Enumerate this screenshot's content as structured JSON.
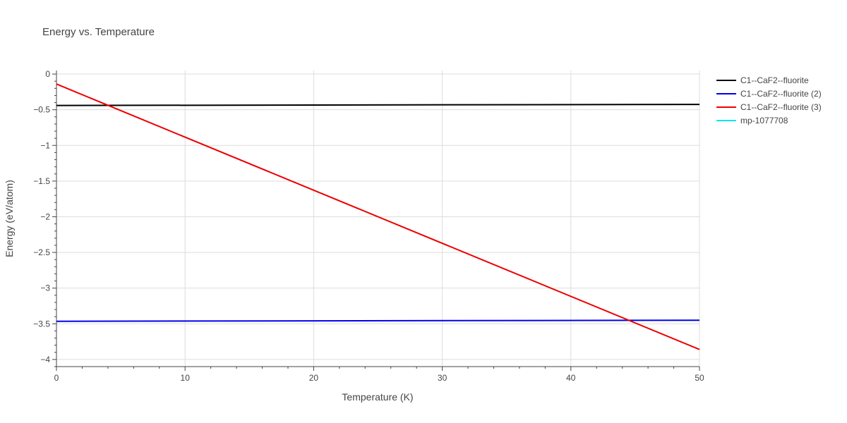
{
  "chart_data": {
    "type": "line",
    "title": "Energy vs. Temperature",
    "xlabel": "Temperature (K)",
    "ylabel": "Energy (eV/atom)",
    "xlim": [
      0,
      50
    ],
    "ylim": [
      -4.1,
      0.05
    ],
    "grid": true,
    "legend_position": "top-right",
    "x_ticks": [
      {
        "value": 0,
        "label": "0"
      },
      {
        "value": 10,
        "label": "10"
      },
      {
        "value": 20,
        "label": "20"
      },
      {
        "value": 30,
        "label": "30"
      },
      {
        "value": 40,
        "label": "40"
      },
      {
        "value": 50,
        "label": "50"
      }
    ],
    "y_ticks": [
      {
        "value": 0,
        "label": "0"
      },
      {
        "value": -0.5,
        "label": "−0.5"
      },
      {
        "value": -1,
        "label": "−1"
      },
      {
        "value": -1.5,
        "label": "−1.5"
      },
      {
        "value": -2,
        "label": "−2"
      },
      {
        "value": -2.5,
        "label": "−2.5"
      },
      {
        "value": -3,
        "label": "−3"
      },
      {
        "value": -3.5,
        "label": "−3.5"
      },
      {
        "value": -4,
        "label": "−4"
      }
    ],
    "series": [
      {
        "name": "C1--CaF2--fluorite",
        "color": "#000000",
        "x": [
          0,
          50
        ],
        "y": [
          -0.44,
          -0.425
        ]
      },
      {
        "name": "C1--CaF2--fluorite (2)",
        "color": "#0000ee",
        "x": [
          0,
          50
        ],
        "y": [
          -3.465,
          -3.45
        ]
      },
      {
        "name": "C1--CaF2--fluorite (3)",
        "color": "#ee0000",
        "x": [
          0,
          50
        ],
        "y": [
          -0.14,
          -3.86
        ]
      },
      {
        "name": "mp-1077708",
        "color": "#00e5ee",
        "x": [],
        "y": []
      }
    ]
  }
}
